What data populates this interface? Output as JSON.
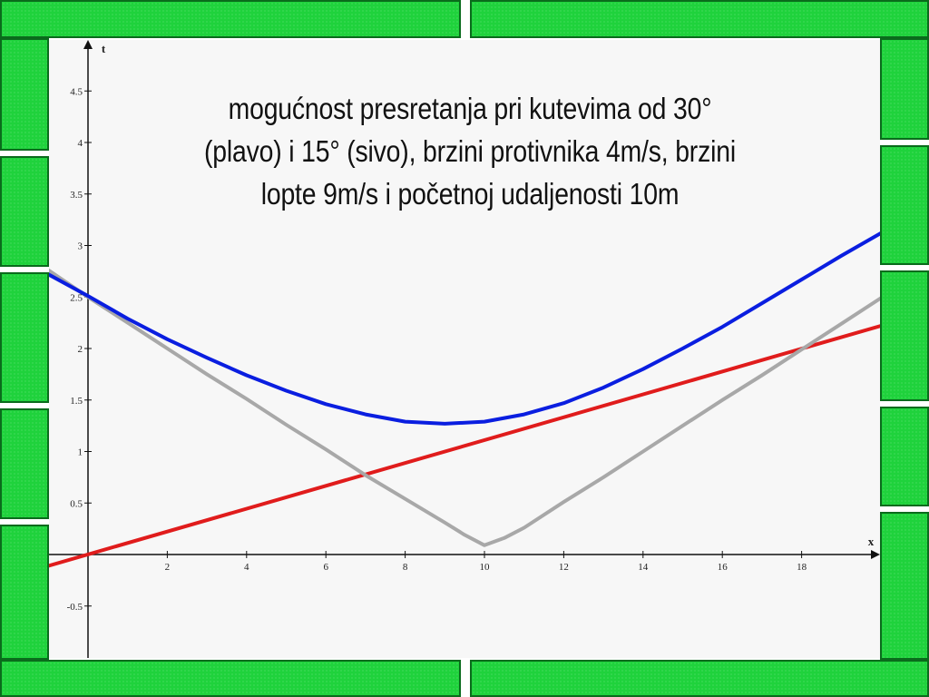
{
  "chart_data": {
    "type": "line",
    "title": "mogućnost presretanja pri kutevima od 30° (plavo) i 15° (sivo), brzini protivnika 4m/s, brzini lopte 9m/s i početnoj udaljenosti 10m",
    "xlabel": "x",
    "ylabel": "t",
    "xlim": [
      -1,
      20
    ],
    "ylim": [
      -1,
      5
    ],
    "x_ticks": [
      2,
      4,
      6,
      8,
      10,
      12,
      14,
      16,
      18
    ],
    "y_ticks": [
      -0.5,
      0.5,
      1,
      1.5,
      2,
      2.5,
      3,
      3.5,
      4,
      4.5
    ],
    "grid": false,
    "series": [
      {
        "color": "#0a1ee0",
        "x": [
          -1,
          0,
          1,
          2,
          3,
          4,
          5,
          6,
          7,
          8,
          9,
          10,
          11,
          12,
          13,
          14,
          15,
          16,
          17,
          18,
          19,
          20
        ],
        "y": [
          2.72,
          2.51,
          2.29,
          2.09,
          1.91,
          1.74,
          1.59,
          1.46,
          1.36,
          1.29,
          1.27,
          1.29,
          1.36,
          1.47,
          1.62,
          1.8,
          2.0,
          2.21,
          2.44,
          2.67,
          2.9,
          3.12
        ]
      },
      {
        "color": "#a8a8a8",
        "x": [
          -1,
          0,
          1,
          2,
          3,
          4,
          5,
          6,
          7,
          8,
          9,
          9.5,
          10,
          10.5,
          11,
          12,
          13,
          14,
          15,
          16,
          17,
          18,
          19,
          20
        ],
        "y": [
          2.76,
          2.5,
          2.25,
          2.0,
          1.75,
          1.51,
          1.26,
          1.02,
          0.77,
          0.54,
          0.31,
          0.19,
          0.09,
          0.16,
          0.26,
          0.51,
          0.75,
          1.0,
          1.25,
          1.5,
          1.74,
          1.99,
          2.24,
          2.49
        ]
      },
      {
        "color": "#e01c1c",
        "x": [
          -1,
          20
        ],
        "y": [
          -0.11,
          2.22
        ]
      }
    ]
  }
}
